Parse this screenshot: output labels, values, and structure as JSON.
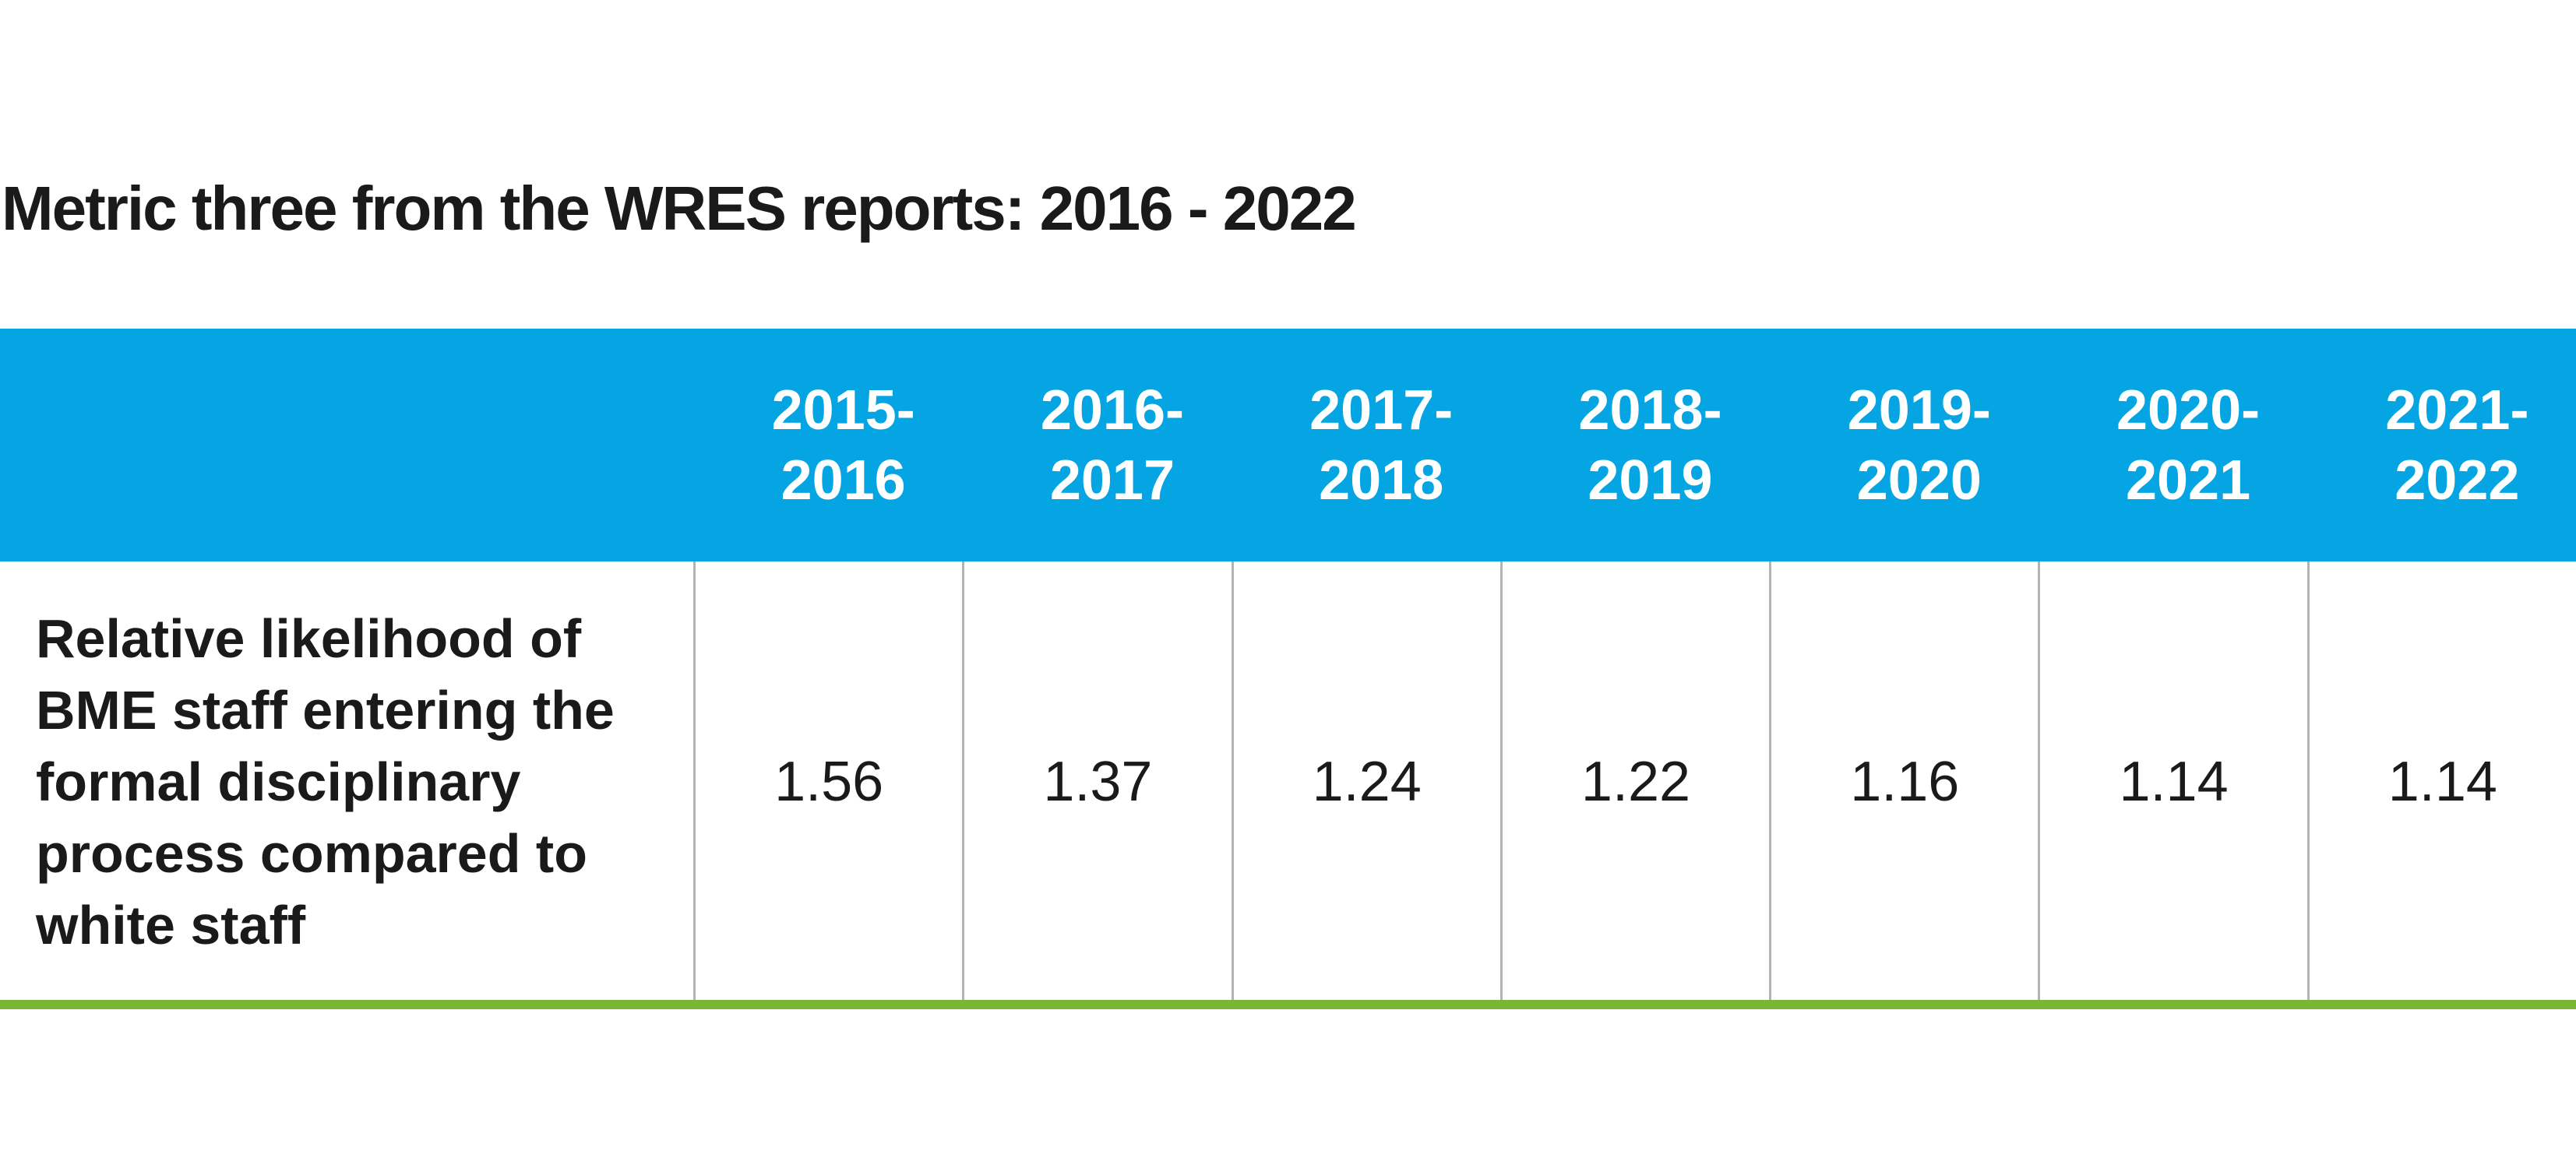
{
  "title": "Metric three from the WRES reports: 2016 - 2022",
  "table": {
    "columns": [
      "2015-2016",
      "2016-2017",
      "2017-2018",
      "2018-2019",
      "2019-2020",
      "2020-2021",
      "2021-2022"
    ],
    "rows": [
      {
        "label": "Relative likelihood of BME staff entering the formal disciplinary process compared to white staff",
        "values": [
          1.56,
          1.37,
          1.24,
          1.22,
          1.16,
          1.14,
          1.14
        ]
      }
    ]
  }
}
